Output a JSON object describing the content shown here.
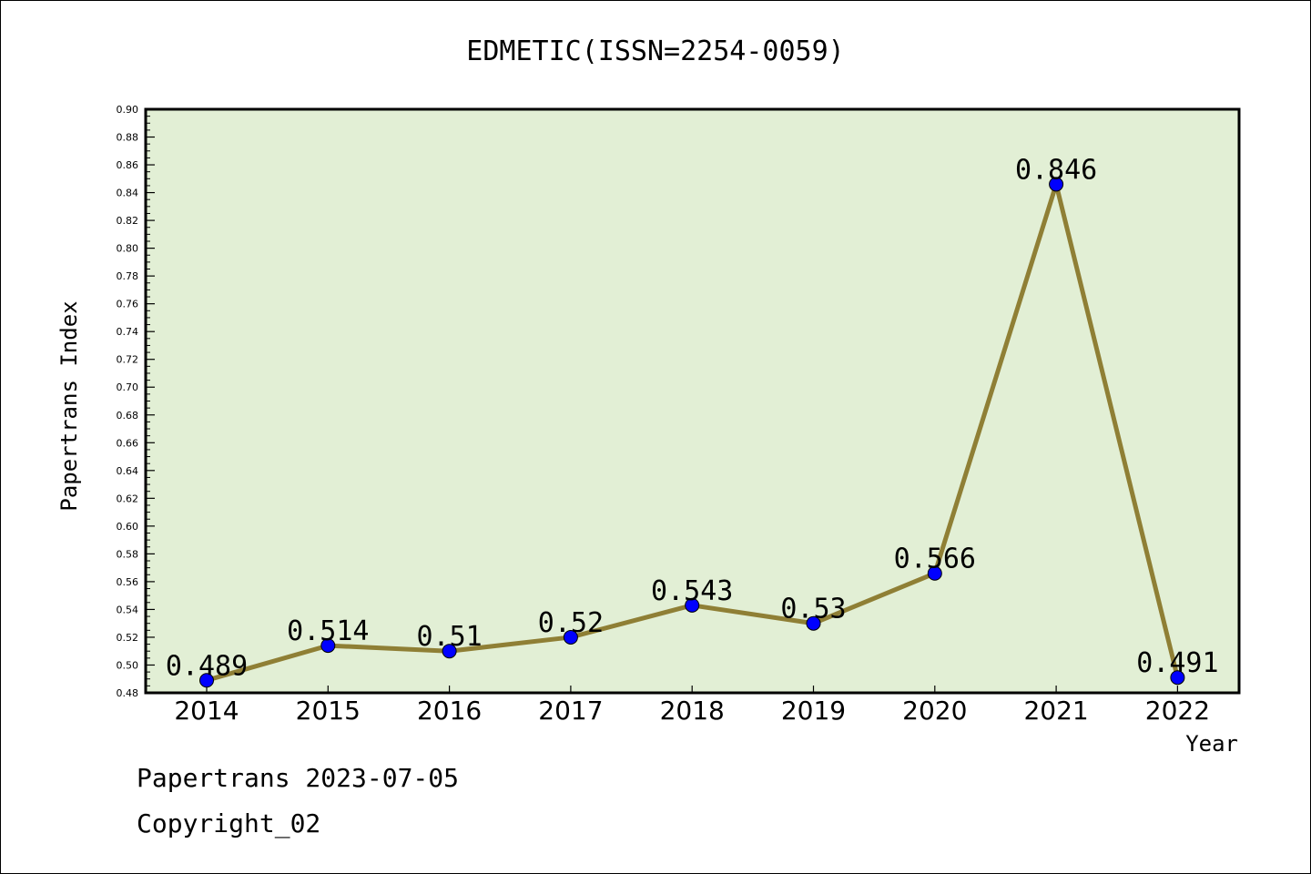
{
  "chart_data": {
    "type": "line",
    "title": "EDMETIC(ISSN=2254-0059)",
    "xlabel": "Year",
    "ylabel": "Papertrans Index",
    "categories": [
      "2014",
      "2015",
      "2016",
      "2017",
      "2018",
      "2019",
      "2020",
      "2021",
      "2022"
    ],
    "values": [
      0.489,
      0.514,
      0.51,
      0.52,
      0.543,
      0.53,
      0.566,
      0.846,
      0.491
    ],
    "data_labels": [
      "0.489",
      "0.514",
      "0.51",
      "0.52",
      "0.543",
      "0.53",
      "0.566",
      "0.846",
      "0.491"
    ],
    "ylim": [
      0.48,
      0.9
    ],
    "yticks": [
      "0.48",
      "0.50",
      "0.52",
      "0.54",
      "0.56",
      "0.58",
      "0.60",
      "0.62",
      "0.64",
      "0.66",
      "0.68",
      "0.70",
      "0.72",
      "0.74",
      "0.76",
      "0.78",
      "0.80",
      "0.82",
      "0.84",
      "0.86",
      "0.88",
      "0.90"
    ],
    "grid": false,
    "colors": {
      "plot_background": "#e2efd5",
      "line": "#8f7f35",
      "marker": "#0000ff"
    }
  },
  "footer": {
    "line1": "Papertrans 2023-07-05",
    "line2": "Copyright_02"
  }
}
